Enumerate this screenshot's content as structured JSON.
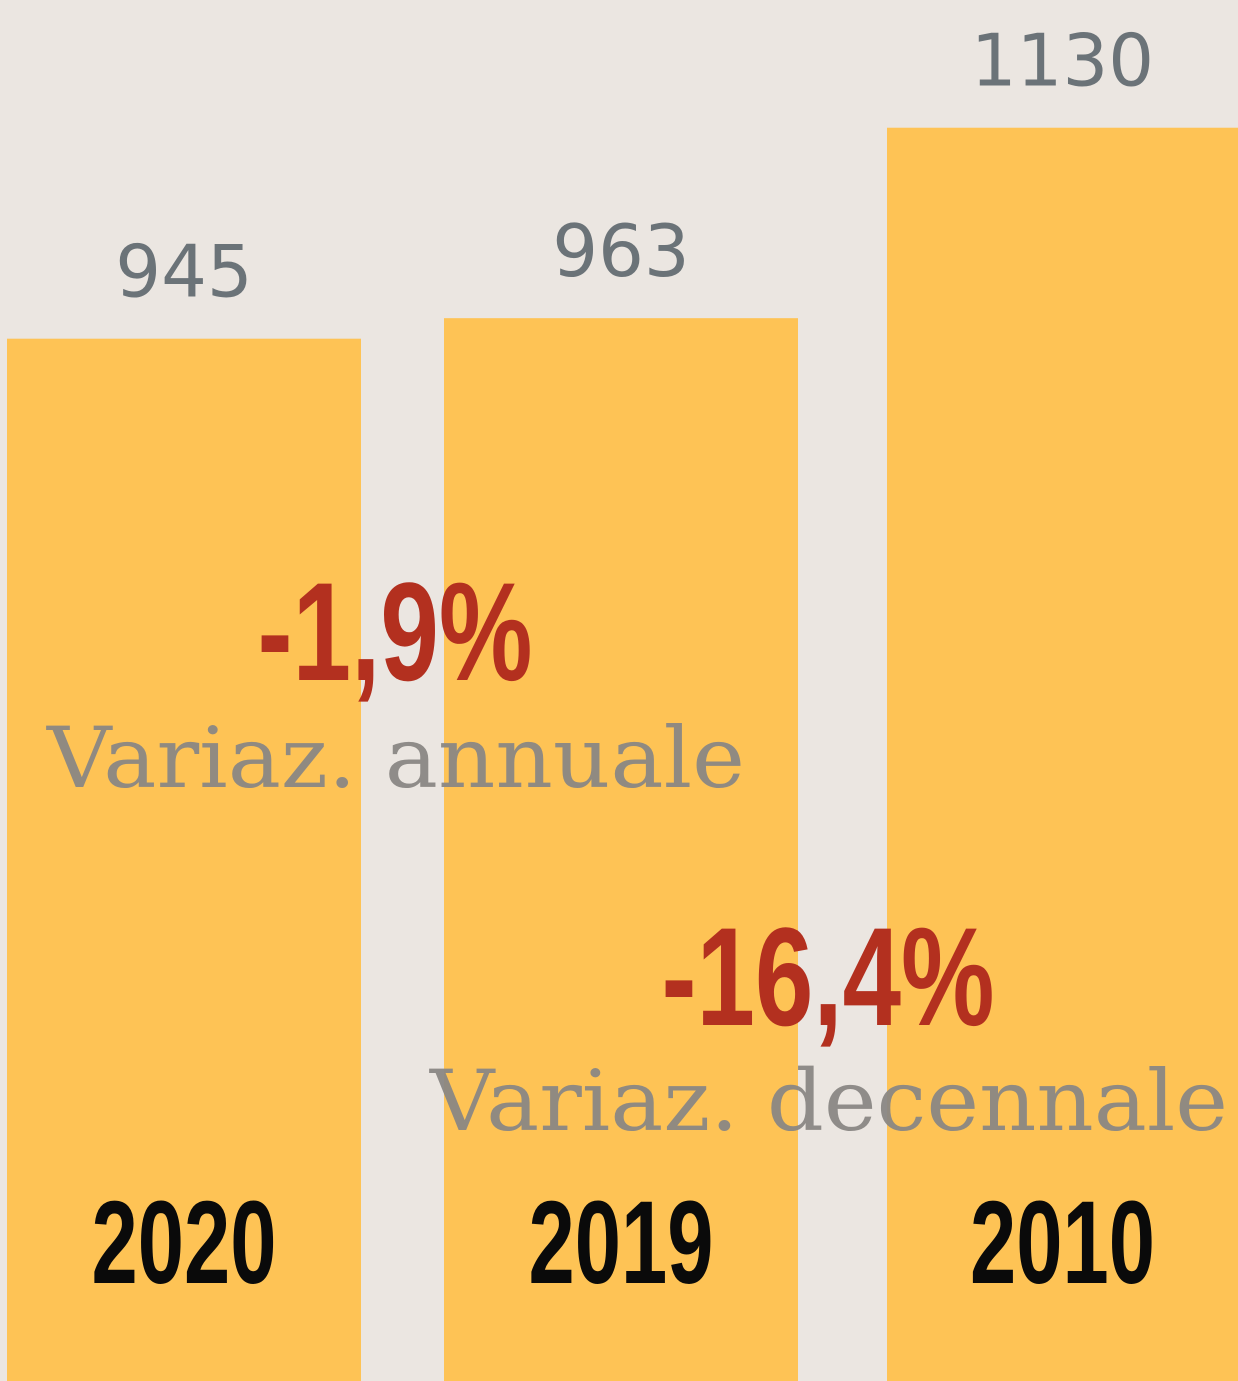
{
  "chart_data": {
    "type": "bar",
    "categories": [
      "2020",
      "2019",
      "2010"
    ],
    "values": [
      945,
      963,
      1130
    ],
    "color": "#fec355",
    "ylim": [
      31,
      1242
    ],
    "annotations": [
      {
        "text": "-1,9%",
        "subtext": "Variaz. annuale"
      },
      {
        "text": "-16,4%",
        "subtext": "Variaz. decennale"
      }
    ]
  }
}
